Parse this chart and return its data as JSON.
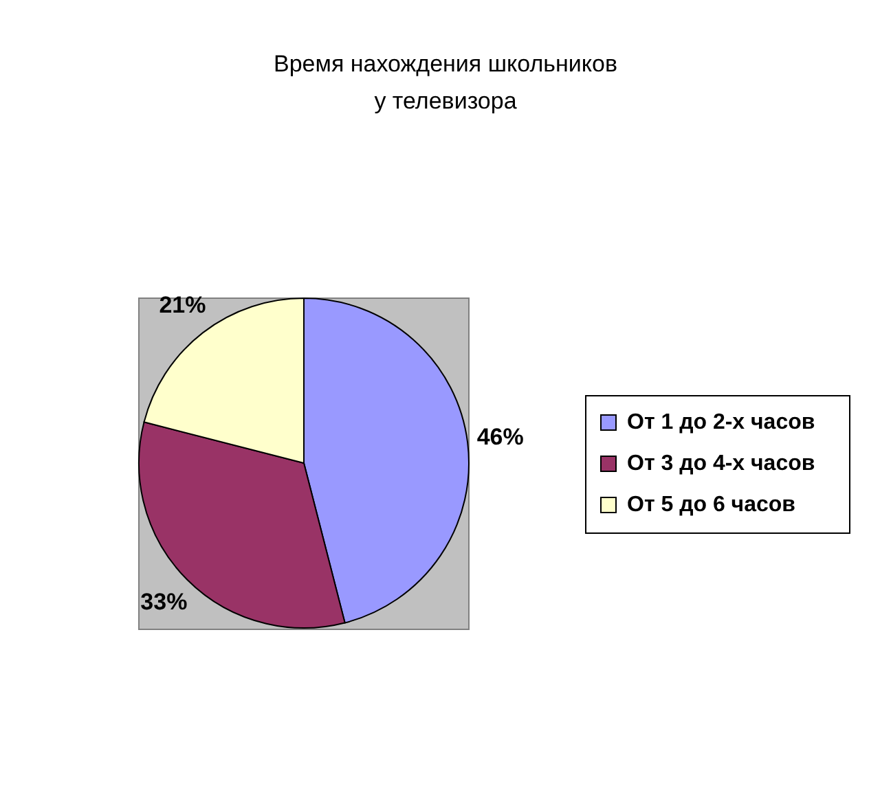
{
  "chart_data": {
    "type": "pie",
    "title": "Время нахождения школьников\nу телевизора",
    "categories": [
      "От 1 до 2-х часов",
      "От 3 до 4-х часов",
      "От 5 до 6 часов"
    ],
    "values": [
      46,
      33,
      21
    ],
    "colors": [
      "#9999ff",
      "#993366",
      "#ffffcc"
    ],
    "value_labels": [
      "46%",
      "33%",
      "21%"
    ],
    "legend": "right"
  }
}
